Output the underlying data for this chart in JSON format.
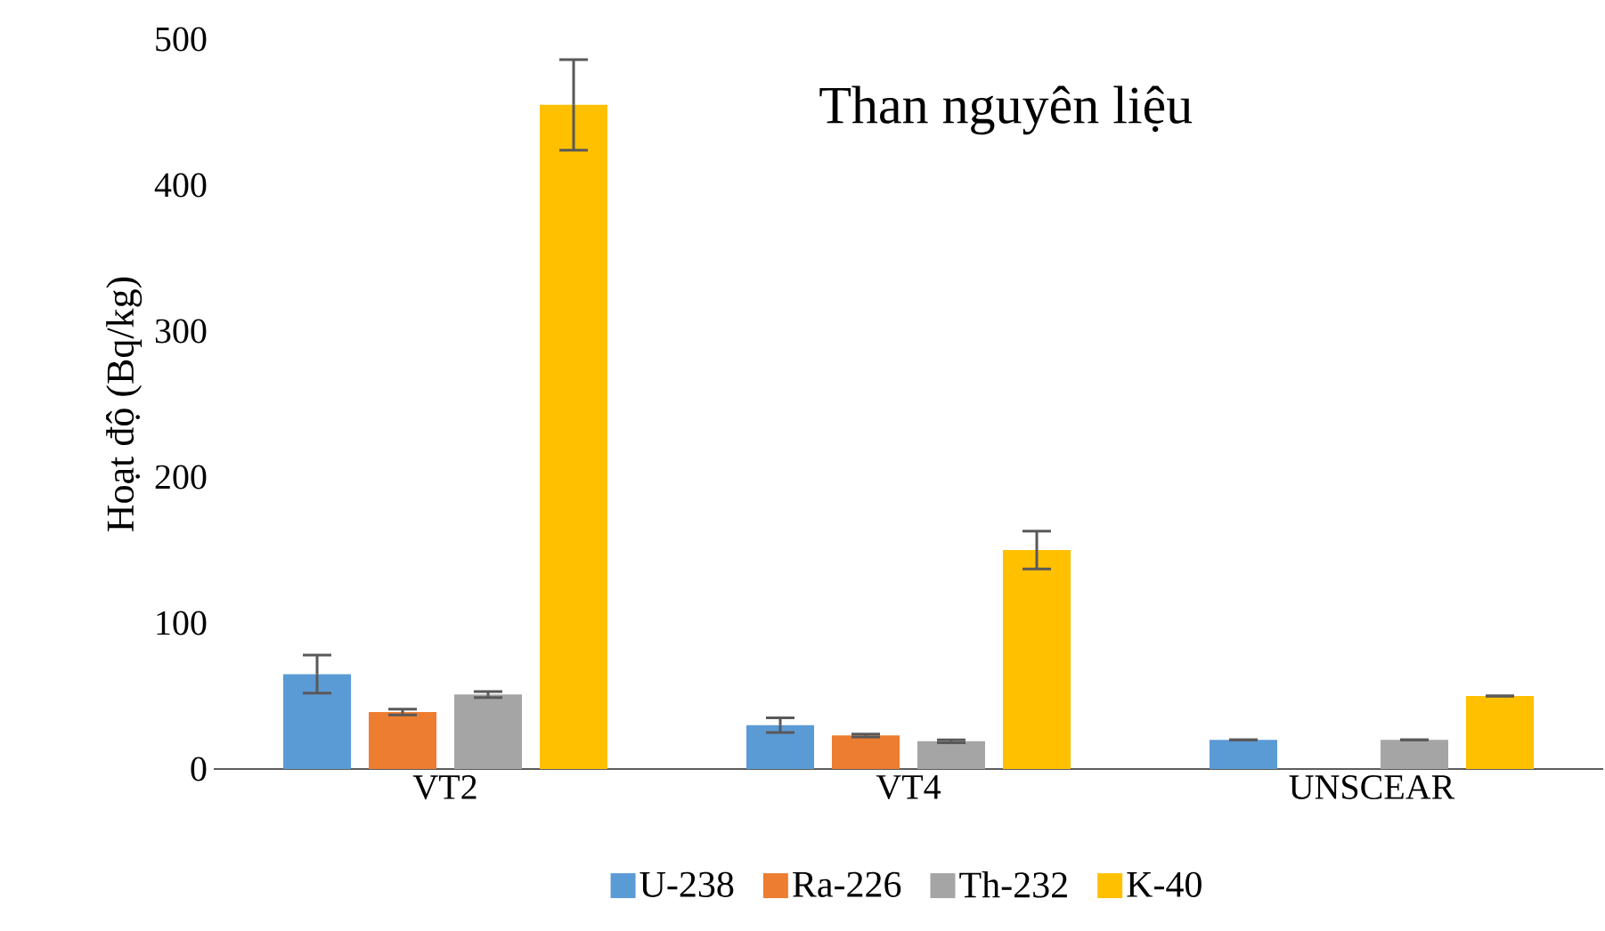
{
  "chart_data": {
    "type": "bar",
    "title": "Than nguyên liệu",
    "ylabel": "Hoạt độ (Bq/kg)",
    "categories": [
      "VT2",
      "VT4",
      "UNSCEAR"
    ],
    "series": [
      {
        "name": "U-238",
        "color": "#5b9bd5",
        "values": [
          65,
          30,
          20
        ],
        "errors": [
          13,
          5,
          null
        ]
      },
      {
        "name": "Ra-226",
        "color": "#ed7d31",
        "values": [
          39,
          23,
          null
        ],
        "errors": [
          2,
          1,
          null
        ]
      },
      {
        "name": "Th-232",
        "color": "#a5a5a5",
        "values": [
          51,
          19,
          20
        ],
        "errors": [
          2,
          1,
          null
        ]
      },
      {
        "name": "K-40",
        "color": "#ffc000",
        "values": [
          455,
          150,
          50
        ],
        "errors": [
          31,
          13,
          null
        ]
      }
    ],
    "ylim": [
      0,
      500
    ],
    "yticks": [
      0,
      100,
      200,
      300,
      400,
      500
    ],
    "legend": "bottom"
  }
}
